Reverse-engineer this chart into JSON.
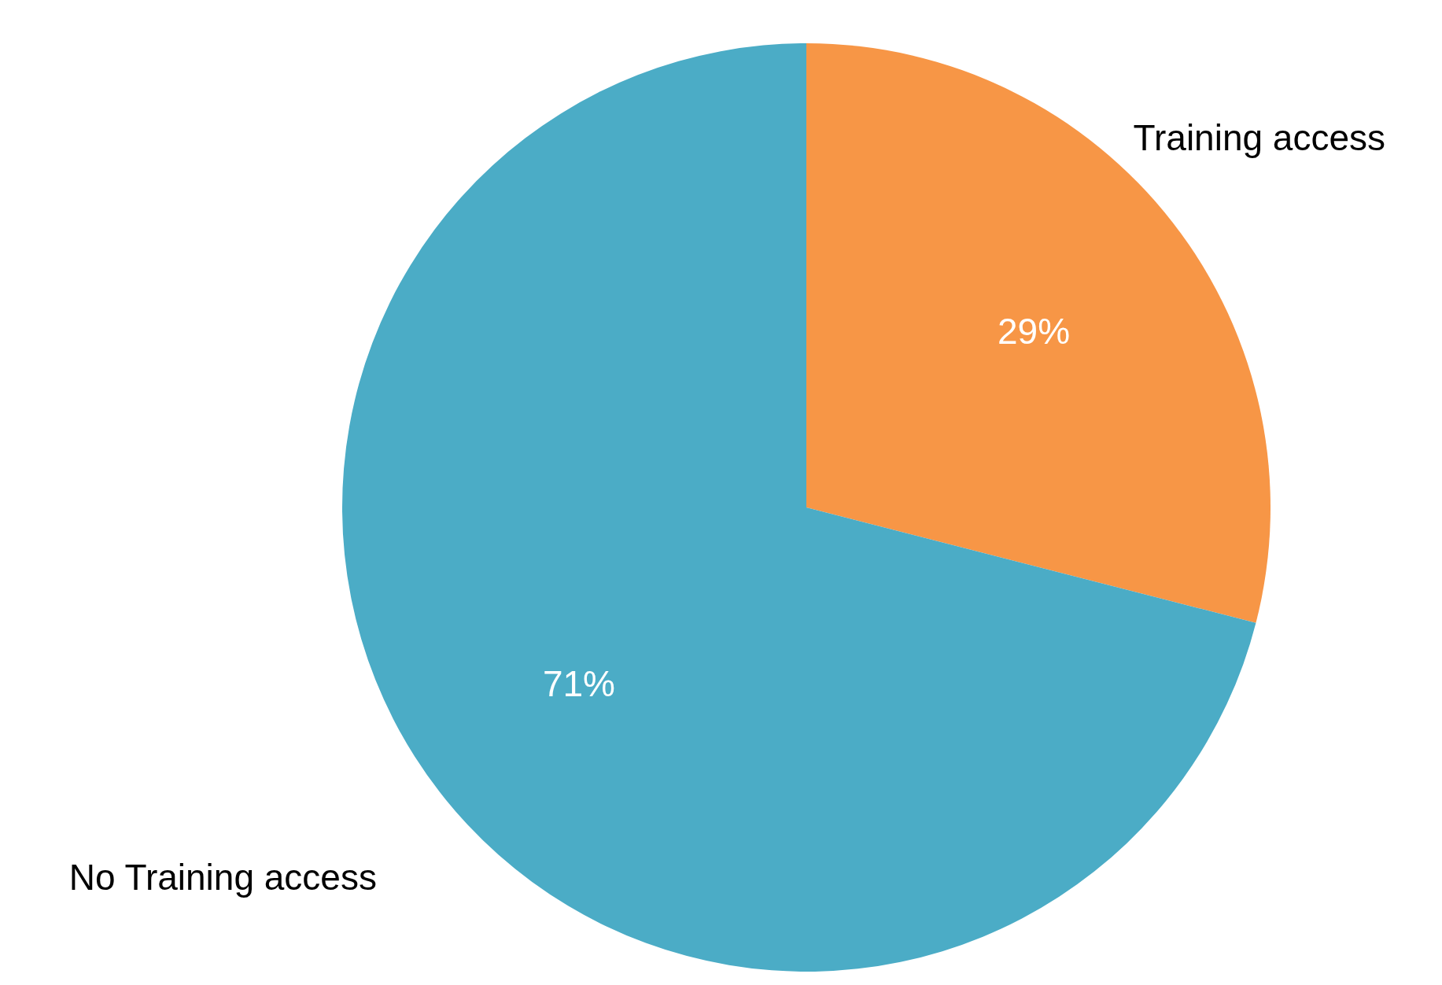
{
  "chart_data": {
    "type": "pie",
    "categories": [
      "Training access",
      "No Training access"
    ],
    "values": [
      29,
      71
    ],
    "colors": [
      "#f79646",
      "#4bacc6"
    ],
    "value_labels": [
      "29%",
      "71%"
    ],
    "data_labels": true
  }
}
